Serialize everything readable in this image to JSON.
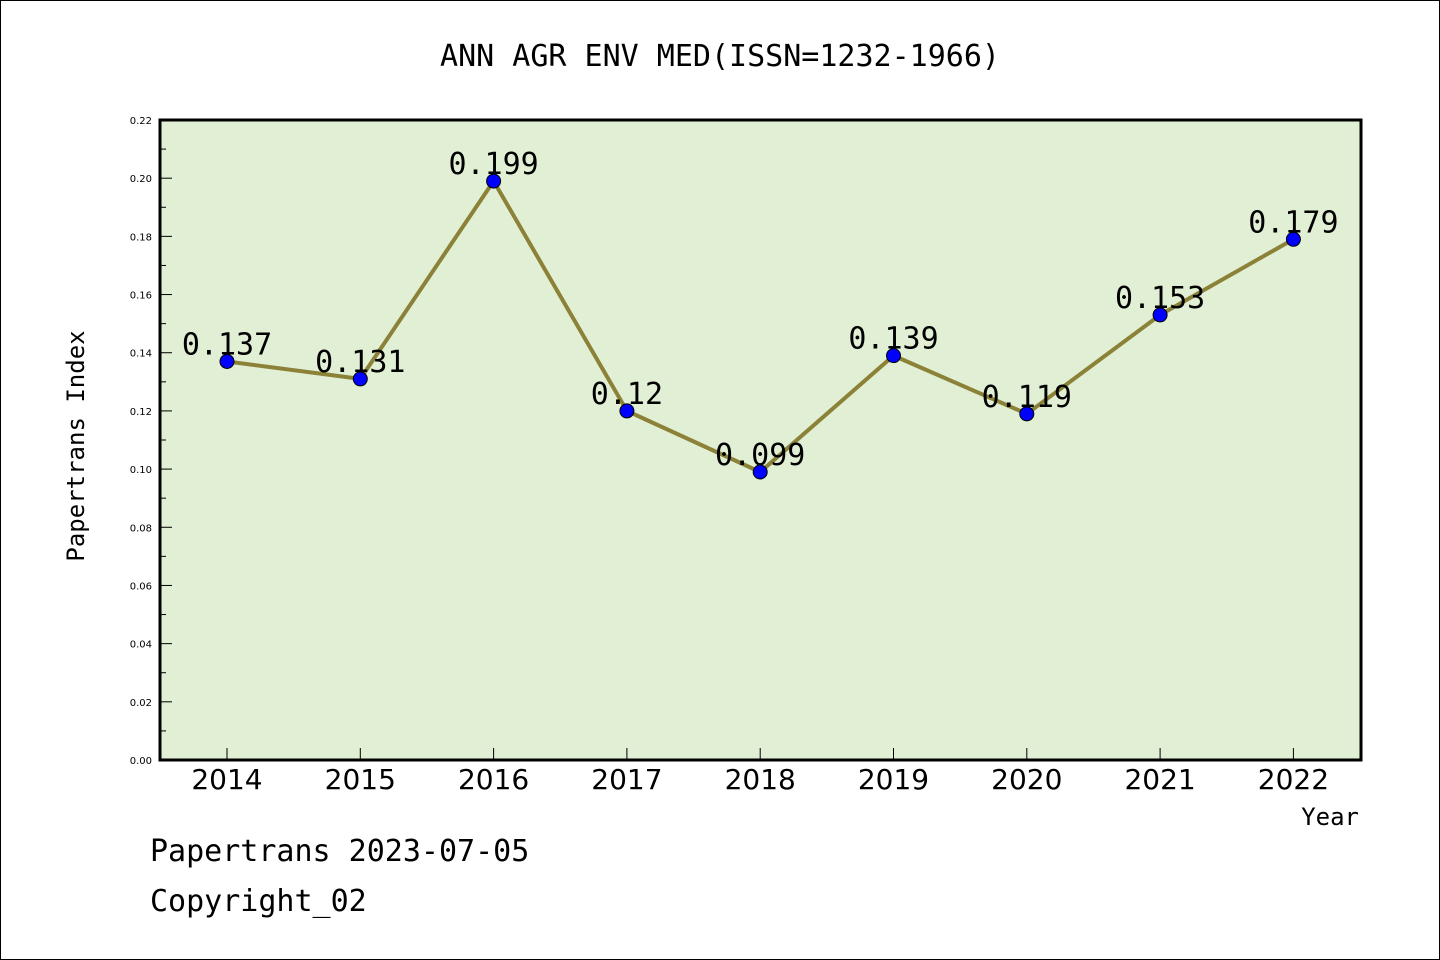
{
  "chart_data": {
    "type": "line",
    "title": "ANN AGR ENV MED(ISSN=1232-1966)",
    "xlabel": "Year",
    "ylabel": "Papertrans Index",
    "categories": [
      "2014",
      "2015",
      "2016",
      "2017",
      "2018",
      "2019",
      "2020",
      "2021",
      "2022"
    ],
    "values": [
      0.137,
      0.131,
      0.199,
      0.12,
      0.099,
      0.139,
      0.119,
      0.153,
      0.179
    ],
    "data_labels": [
      "0.137",
      "0.131",
      "0.199",
      "0.12",
      "0.099",
      "0.139",
      "0.119",
      "0.153",
      "0.179"
    ],
    "ylim": [
      0,
      0.22
    ],
    "yticks": [
      "0.00",
      "0.02",
      "0.04",
      "0.06",
      "0.08",
      "0.10",
      "0.12",
      "0.14",
      "0.16",
      "0.18",
      "0.20",
      "0.22"
    ],
    "grid": false,
    "legend": "none",
    "colors": {
      "plot_background": "#e1efd5",
      "line": "#8b8238",
      "marker": "#0000ff",
      "frame": "#000000"
    }
  },
  "footer": {
    "line1": "Papertrans 2023-07-05",
    "line2": "Copyright_02"
  }
}
